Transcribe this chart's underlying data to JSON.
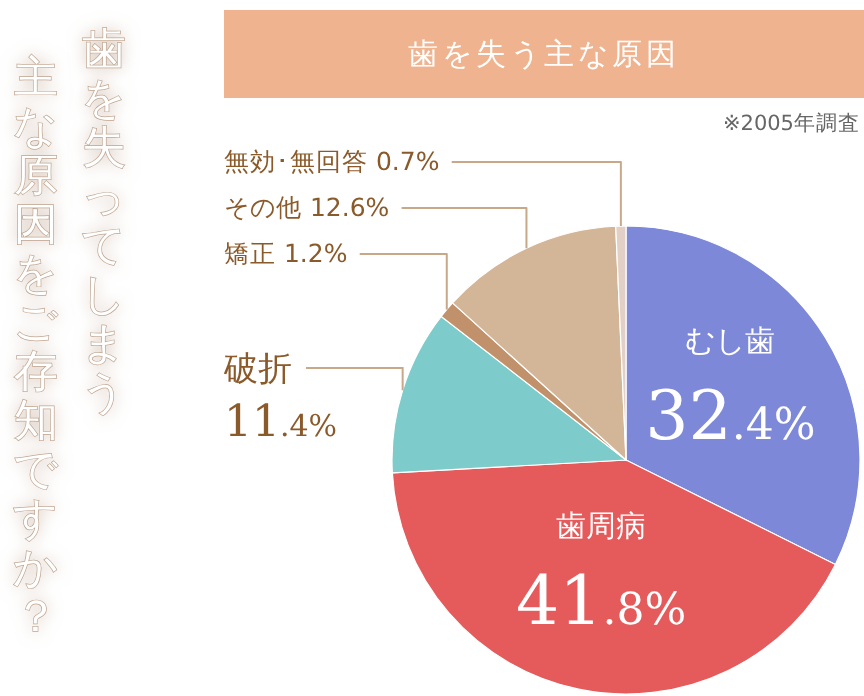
{
  "chart_data": {
    "type": "pie",
    "title": "歯を失う主な原因",
    "categories": [
      "むし歯",
      "歯周病",
      "破折",
      "矯正",
      "その他",
      "無効･無回答"
    ],
    "values": [
      32.4,
      41.8,
      11.4,
      1.2,
      12.6,
      0.7
    ],
    "value_labels": [
      "32.4%",
      "41.8%",
      "11.4%",
      "1.2%",
      "12.6%",
      "0.7%"
    ],
    "colors": [
      "#7d88d8",
      "#e55a5a",
      "#7dcbca",
      "#c0916a",
      "#d3b598",
      "#e2d0c6"
    ],
    "annotations": [
      "歯を失ってしまう",
      "主な原因をご存知ですか？",
      "※2005年調査"
    ]
  }
}
